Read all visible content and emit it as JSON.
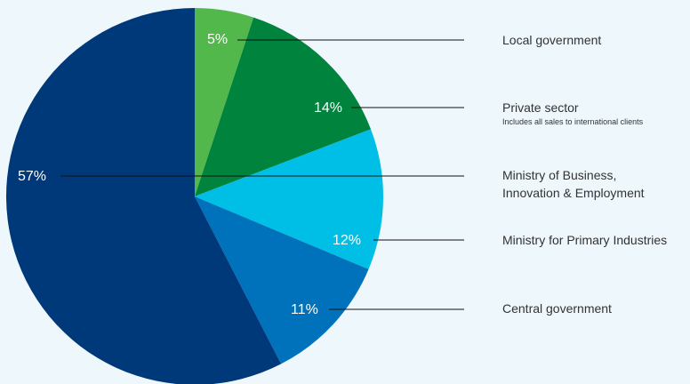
{
  "chart_data": {
    "type": "pie",
    "slices": [
      {
        "label": "Local government",
        "value": 5,
        "value_label": "5%",
        "color": "#52b84b"
      },
      {
        "label": "Private sector",
        "note": "Includes all sales to international clients",
        "value": 14,
        "value_label": "14%",
        "color": "#00843d"
      },
      {
        "label": "Ministry of Business, Innovation & Employment",
        "label_lines": [
          "Ministry of Business,",
          "Innovation & Employment"
        ],
        "value": 57,
        "value_label": "57%",
        "color": "#00397a"
      },
      {
        "label": "Ministry for Primary Industries",
        "value": 12,
        "value_label": "12%",
        "color": "#00bfe6"
      },
      {
        "label": "Central government",
        "value": 11,
        "value_label": "11%",
        "color": "#0072bb"
      }
    ],
    "legend_position": "right"
  }
}
